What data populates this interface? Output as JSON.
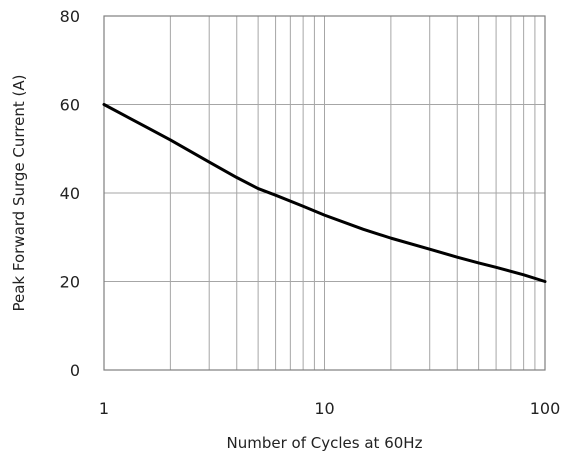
{
  "colors": {
    "background": "#ffffff",
    "grid": "#a6a6a6",
    "frame": "#7f7f7f",
    "series": "#000000",
    "text": "#222222"
  },
  "chart_data": {
    "type": "line",
    "title": "",
    "xlabel": "Number of Cycles at 60Hz",
    "ylabel": "Peak Forward Surge Current  (A)",
    "x_scale": "log",
    "xlim": [
      1,
      100
    ],
    "ylim": [
      0,
      80
    ],
    "x_ticks": [
      1,
      10,
      100
    ],
    "x_tick_labels": [
      "1",
      "10",
      "100"
    ],
    "y_ticks": [
      0,
      20,
      40,
      60,
      80
    ],
    "y_tick_labels": [
      "0",
      "20",
      "40",
      "60",
      "80"
    ],
    "grid": true,
    "legend": "none",
    "series": [
      {
        "x": [
          1,
          2,
          3,
          4,
          5,
          6,
          8,
          10,
          15,
          20,
          30,
          40,
          50,
          60,
          80,
          100
        ],
        "y": [
          60,
          52,
          47,
          43.5,
          41,
          39.5,
          37,
          35,
          31.8,
          29.8,
          27.3,
          25.5,
          24.2,
          23.2,
          21.5,
          20
        ]
      }
    ]
  }
}
